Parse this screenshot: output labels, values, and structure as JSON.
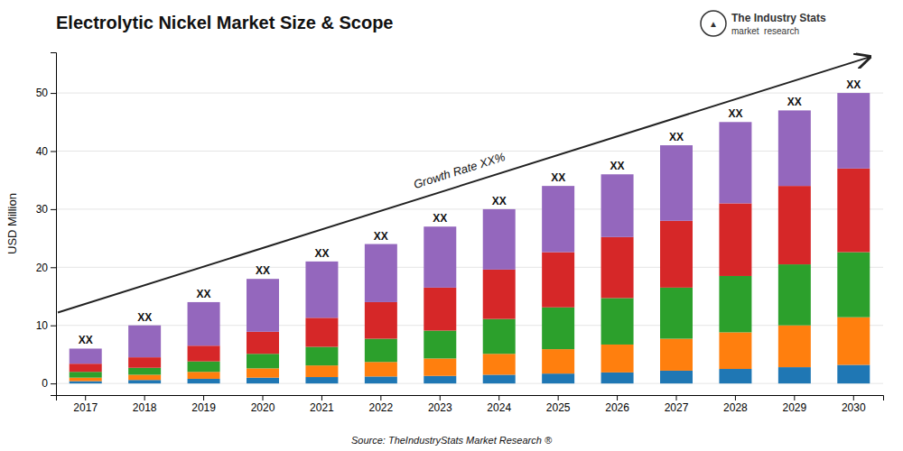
{
  "chart_data": {
    "type": "bar",
    "stacked": true,
    "title": "Electrolytic Nickel Market Size & Scope",
    "ylabel": "USD Million",
    "categories": [
      2017,
      2018,
      2019,
      2020,
      2021,
      2022,
      2023,
      2024,
      2025,
      2026,
      2027,
      2028,
      2029,
      2030
    ],
    "series": [
      {
        "values": [
          0.4,
          0.6,
          0.8,
          1.0,
          1.1,
          1.2,
          1.3,
          1.5,
          1.7,
          1.9,
          2.2,
          2.5,
          2.8,
          3.2
        ]
      },
      {
        "values": [
          0.6,
          0.9,
          1.2,
          1.6,
          2.0,
          2.5,
          3.0,
          3.6,
          4.2,
          4.8,
          5.5,
          6.3,
          7.2,
          8.2
        ]
      },
      {
        "values": [
          1.0,
          1.2,
          1.8,
          2.5,
          3.2,
          4.0,
          4.8,
          6.0,
          7.2,
          8.0,
          8.8,
          9.7,
          10.5,
          11.2
        ]
      },
      {
        "values": [
          1.4,
          1.8,
          2.7,
          3.8,
          5.0,
          6.3,
          7.4,
          8.5,
          9.5,
          10.5,
          11.5,
          12.5,
          13.5,
          14.4
        ]
      },
      {
        "values": [
          2.6,
          5.5,
          7.5,
          9.1,
          9.7,
          10.0,
          10.5,
          10.4,
          11.4,
          10.8,
          13.0,
          14.0,
          13.0,
          13.0
        ]
      }
    ],
    "bar_labels": [
      "XX",
      "XX",
      "XX",
      "XX",
      "XX",
      "XX",
      "XX",
      "XX",
      "XX",
      "XX",
      "XX",
      "XX",
      "XX",
      "XX"
    ],
    "annotations": [
      "Growth Rate XX%",
      "Source: TheIndustryStats Market Research ®",
      "The Industry Stats",
      "market  research",
      "▲"
    ],
    "ylim": [
      -2,
      57
    ],
    "yticks": [
      0,
      10,
      20,
      30,
      40,
      50
    ],
    "grid": true
  }
}
